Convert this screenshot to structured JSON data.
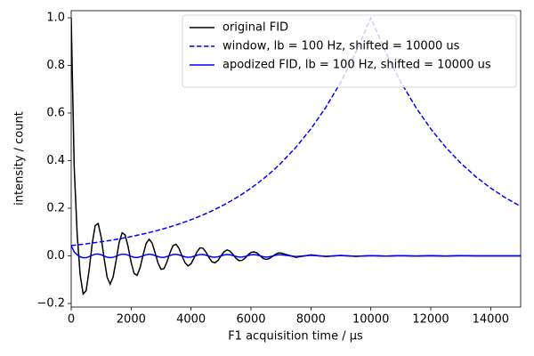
{
  "chart_data": {
    "type": "line",
    "xlabel": "F1 acquisition time / μs",
    "ylabel": "intensity / count",
    "xlim": [
      0,
      15000
    ],
    "ylim": [
      -0.215,
      1.03
    ],
    "xticks": [
      0,
      2000,
      4000,
      6000,
      8000,
      10000,
      12000,
      14000
    ],
    "yticks": [
      {
        "value": -0.2,
        "label": "−0.2"
      },
      {
        "value": 0,
        "label": "0.0"
      },
      {
        "value": 0.2,
        "label": "0.2"
      },
      {
        "value": 0.4,
        "label": "0.4"
      },
      {
        "value": 0.6,
        "label": "0.6"
      },
      {
        "value": 0.8,
        "label": "0.8"
      },
      {
        "value": 1.0,
        "label": "1.0"
      }
    ],
    "legend": "upper right",
    "x": [
      0,
      100,
      200,
      300,
      400,
      500,
      600,
      700,
      800,
      900,
      1000,
      1100,
      1200,
      1300,
      1400,
      1500,
      1600,
      1700,
      1800,
      1900,
      2000,
      2100,
      2200,
      2300,
      2400,
      2500,
      2600,
      2700,
      2800,
      2900,
      3000,
      3100,
      3200,
      3300,
      3400,
      3500,
      3600,
      3700,
      3800,
      3900,
      4000,
      4100,
      4200,
      4300,
      4400,
      4500,
      4600,
      4700,
      4800,
      4900,
      5000,
      5100,
      5200,
      5300,
      5400,
      5500,
      5600,
      5700,
      5800,
      5900,
      6000,
      6100,
      6200,
      6300,
      6400,
      6500,
      6600,
      6700,
      6800,
      6900,
      7000,
      7500,
      8000,
      8500,
      9000,
      9500,
      10000,
      10500,
      11000,
      11500,
      12000,
      12500,
      13000,
      13500,
      14000,
      14500,
      15000
    ],
    "series": [
      {
        "name": "original FID",
        "color": "#000000",
        "dash": "solid",
        "values": [
          1.0,
          0.373,
          0.089,
          -0.081,
          -0.16,
          -0.146,
          -0.058,
          0.051,
          0.127,
          0.136,
          0.079,
          -0.012,
          -0.09,
          -0.119,
          -0.088,
          -0.018,
          0.056,
          0.097,
          0.088,
          0.038,
          -0.027,
          -0.074,
          -0.082,
          -0.049,
          0.004,
          0.052,
          0.07,
          0.054,
          0.013,
          -0.031,
          -0.057,
          -0.053,
          -0.024,
          0.014,
          0.043,
          0.049,
          0.031,
          -0.001,
          -0.029,
          -0.042,
          -0.033,
          -0.009,
          0.017,
          0.034,
          0.032,
          0.015,
          -0.007,
          -0.025,
          -0.029,
          -0.019,
          0.0,
          0.017,
          0.025,
          0.02,
          0.006,
          -0.01,
          -0.02,
          -0.019,
          -0.01,
          0.004,
          0.014,
          0.017,
          0.012,
          0.001,
          -0.01,
          -0.015,
          -0.012,
          -0.004,
          0.005,
          0.012,
          0.012,
          -0.006,
          0.004,
          -0.003,
          0.002,
          -0.002,
          0.001,
          -0.001,
          0.001,
          -0.001,
          0.001,
          -0.001,
          0.001,
          0,
          0,
          0,
          0
        ]
      },
      {
        "name": "window, lb = 100 Hz, shifted = 10000 us",
        "color": "#0000ff",
        "dash": "dashed",
        "values": [
          0.0432,
          0.0446,
          0.046,
          0.0475,
          0.049,
          0.0506,
          0.0522,
          0.0539,
          0.0556,
          0.0574,
          0.0592,
          0.0611,
          0.0631,
          0.0651,
          0.0672,
          0.0693,
          0.0715,
          0.0738,
          0.0762,
          0.0786,
          0.0811,
          0.0836,
          0.0863,
          0.0891,
          0.0919,
          0.0949,
          0.0979,
          0.101,
          0.1043,
          0.1076,
          0.111,
          0.1145,
          0.1182,
          0.122,
          0.1259,
          0.1299,
          0.134,
          0.1383,
          0.1427,
          0.1473,
          0.152,
          0.1567,
          0.1617,
          0.1669,
          0.1722,
          0.1777,
          0.1834,
          0.1892,
          0.1953,
          0.2015,
          0.2079,
          0.2145,
          0.2214,
          0.2285,
          0.2358,
          0.2433,
          0.251,
          0.259,
          0.2673,
          0.2758,
          0.2846,
          0.2937,
          0.3031,
          0.3128,
          0.3227,
          0.333,
          0.3437,
          0.3546,
          0.3659,
          0.3776,
          0.3897,
          0.4559,
          0.5335,
          0.6242,
          0.7304,
          0.8546,
          1.0,
          0.8546,
          0.7304,
          0.6242,
          0.5335,
          0.4559,
          0.3897,
          0.333,
          0.2846,
          0.2432,
          0.2079
        ]
      },
      {
        "name": "apodized FID, lb = 100 Hz, shifted = 10000 us",
        "color": "#0000ff",
        "dash": "solid",
        "values": [
          0.0432,
          0.0166,
          0.0041,
          -0.0038,
          -0.0078,
          -0.0074,
          -0.003,
          0.0027,
          0.0071,
          0.0078,
          0.0047,
          -0.0007,
          -0.0057,
          -0.0077,
          -0.0059,
          -0.0012,
          0.004,
          0.0072,
          0.0067,
          0.003,
          -0.0022,
          -0.0062,
          -0.0071,
          -0.0044,
          0.0004,
          0.0049,
          0.0069,
          0.0055,
          0.0014,
          -0.0033,
          -0.0063,
          -0.0061,
          -0.0028,
          0.0017,
          0.0054,
          0.0064,
          0.0042,
          -0.0001,
          -0.0041,
          -0.0062,
          -0.005,
          -0.0014,
          0.0027,
          0.0057,
          0.0055,
          0.0027,
          -0.0013,
          -0.0047,
          -0.0057,
          -0.0038,
          0.0,
          0.0036,
          0.0055,
          0.0046,
          0.0014,
          -0.0024,
          -0.005,
          -0.0049,
          -0.0027,
          0.0011,
          0.004,
          0.005,
          0.0036,
          0.0003,
          -0.0032,
          -0.005,
          -0.0041,
          -0.0014,
          0.0018,
          0.0045,
          0.0047,
          -0.0027,
          0.0021,
          -0.0019,
          0.0015,
          -0.0017,
          0.001,
          -0.0009,
          0.0007,
          -0.0006,
          0.0005,
          -0.0005,
          0.0004,
          0,
          0,
          0,
          0
        ]
      }
    ]
  }
}
